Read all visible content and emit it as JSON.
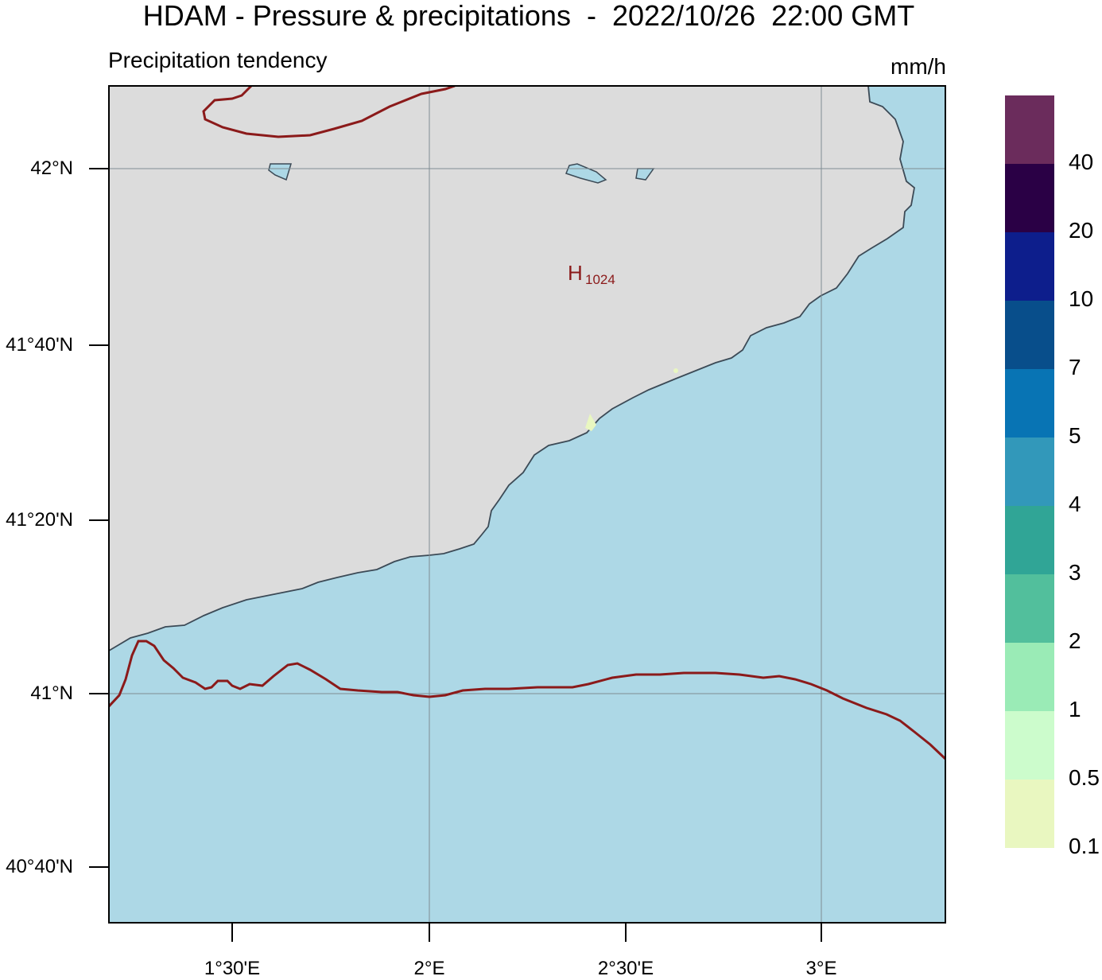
{
  "header": {
    "title": "HDAM - Pressure & precipitations  -  2022/10/26  22:00 GMT",
    "subtitle": "Precipitation tendency",
    "units": "mm/h"
  },
  "map": {
    "colors": {
      "land": "#dcdcdc",
      "sea": "#add8e6",
      "coastline": "#3c4a56",
      "isobar": "#8b1a1a",
      "grid": "#7f8c93",
      "frame": "#000000"
    },
    "lat_labels": [
      "42°N",
      "41°40'N",
      "41°20'N",
      "41°N",
      "40°40'N"
    ],
    "lon_labels": [
      "1°30'E",
      "2°E",
      "2°30'E",
      "3°E"
    ],
    "pressure_center": {
      "type": "H",
      "value": "1024"
    }
  },
  "colorbar": {
    "labels": [
      "40",
      "20",
      "10",
      "7",
      "5",
      "4",
      "3",
      "2",
      "1",
      "0.5",
      "0.1"
    ],
    "colors": [
      "#6b2c5c",
      "#2a0045",
      "#0d1e8c",
      "#084e8b",
      "#0874b4",
      "#3298ba",
      "#30a596",
      "#52bf9c",
      "#9aebb6",
      "#ccfccc",
      "#e9f7c0"
    ]
  }
}
